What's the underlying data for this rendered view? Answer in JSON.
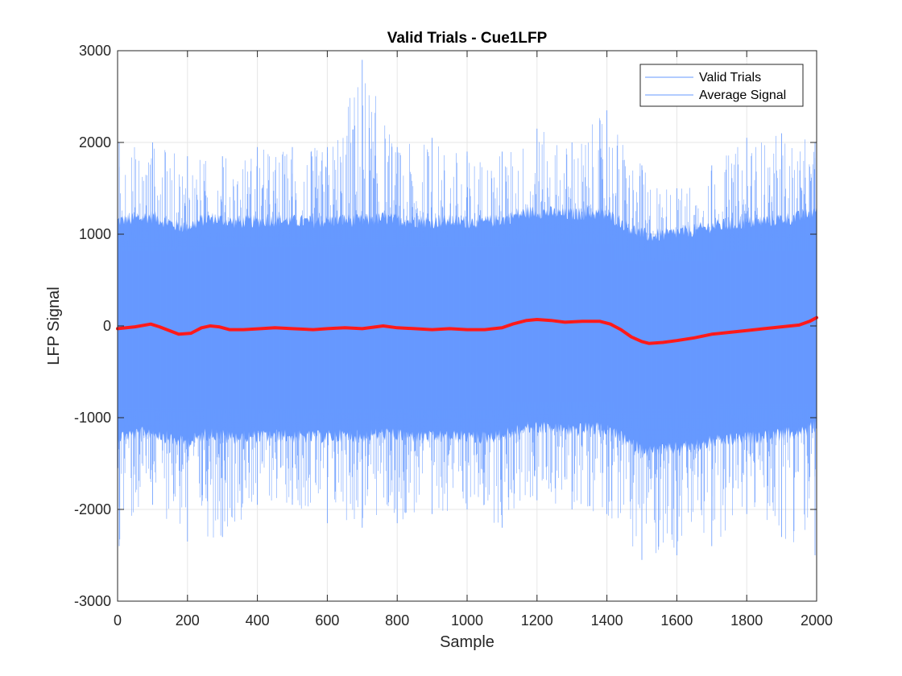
{
  "chart_data": {
    "type": "line",
    "title": "Valid Trials - Cue1LFP",
    "xlabel": "Sample",
    "ylabel": "LFP Signal",
    "xlim": [
      0,
      2000
    ],
    "ylim": [
      -3000,
      3000
    ],
    "xticks": [
      0,
      200,
      400,
      600,
      800,
      1000,
      1200,
      1400,
      1600,
      1800,
      2000
    ],
    "yticks": [
      -3000,
      -2000,
      -1000,
      0,
      1000,
      2000,
      3000
    ],
    "xtick_labels": [
      "0",
      "200",
      "400",
      "600",
      "800",
      "1000",
      "1200",
      "1400",
      "1600",
      "1800",
      "2000"
    ],
    "ytick_labels": [
      "-3000",
      "-2000",
      "-1000",
      "0",
      "1000",
      "2000",
      "3000"
    ],
    "grid": true,
    "legend_position": "top-right",
    "series": [
      {
        "name": "Valid Trials",
        "color": "#6699ff",
        "kind": "overlaid trials",
        "x": [
          0,
          100,
          200,
          300,
          400,
          500,
          600,
          700,
          800,
          900,
          1000,
          1100,
          1200,
          1300,
          1400,
          1500,
          1600,
          1700,
          1800,
          1900,
          2000
        ],
        "upper_envelope": [
          2000,
          2000,
          1850,
          1850,
          1950,
          1950,
          1950,
          2900,
          1950,
          2050,
          1900,
          1900,
          2150,
          2000,
          2350,
          1750,
          1500,
          1750,
          2050,
          2100,
          2000
        ],
        "lower_envelope": [
          -2400,
          -1950,
          -2350,
          -2300,
          -1950,
          -1950,
          -2150,
          -2200,
          -2150,
          -2050,
          -2000,
          -2200,
          -1900,
          -2000,
          -2050,
          -2550,
          -2500,
          -2400,
          -2050,
          -2300,
          -2500
        ]
      },
      {
        "name": "Average Signal",
        "color": "#ff1a1a",
        "x": [
          0,
          50,
          95,
          120,
          175,
          210,
          240,
          265,
          290,
          320,
          360,
          410,
          450,
          500,
          560,
          600,
          650,
          700,
          760,
          800,
          850,
          900,
          950,
          1000,
          1050,
          1100,
          1130,
          1170,
          1200,
          1240,
          1280,
          1330,
          1380,
          1410,
          1440,
          1470,
          1500,
          1520,
          1560,
          1600,
          1650,
          1700,
          1750,
          1800,
          1850,
          1900,
          1950,
          1980,
          2000
        ],
        "y": [
          -30,
          -10,
          20,
          -10,
          -90,
          -80,
          -20,
          0,
          -10,
          -40,
          -40,
          -30,
          -20,
          -30,
          -40,
          -30,
          -20,
          -30,
          0,
          -20,
          -30,
          -40,
          -30,
          -40,
          -40,
          -20,
          20,
          60,
          70,
          60,
          40,
          50,
          50,
          20,
          -40,
          -120,
          -170,
          -190,
          -180,
          -160,
          -130,
          -90,
          -70,
          -50,
          -30,
          -10,
          10,
          50,
          90
        ]
      }
    ]
  }
}
